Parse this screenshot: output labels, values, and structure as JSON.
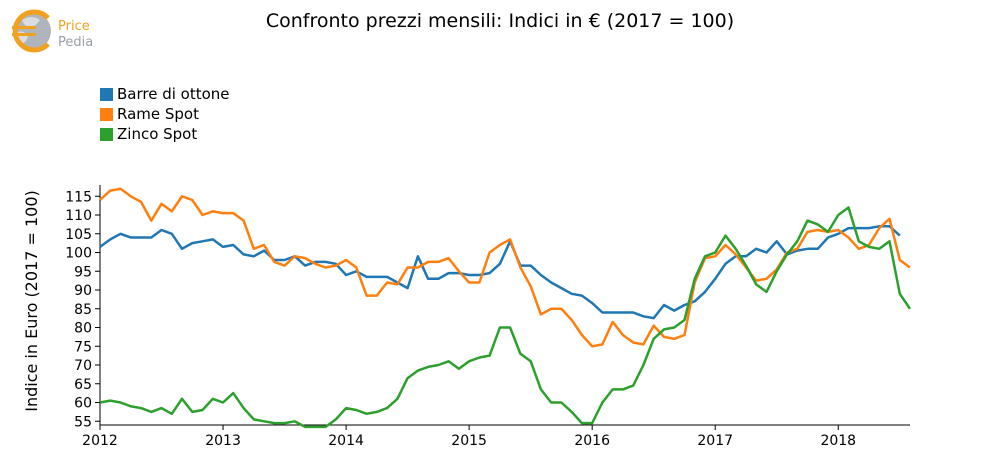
{
  "title": "Confronto prezzi mensili: Indici in € (2017 = 100)",
  "logo": {
    "line1": "Price",
    "line2": "Pedia"
  },
  "colors": {
    "brass": "#1f77b4",
    "copper": "#ff7f0e",
    "zinc": "#2ca02c",
    "logo": "#f2a11e"
  },
  "chart_data": {
    "type": "line",
    "title": "Confronto prezzi mensili: Indici in € (2017 = 100)",
    "xlabel": "",
    "ylabel": "Indice in Euro (2017 = 100)",
    "xlim": [
      2012.0,
      2018.583
    ],
    "ylim": [
      54,
      118
    ],
    "xticks": [
      2012,
      2013,
      2014,
      2015,
      2016,
      2017,
      2018
    ],
    "xtick_labels": [
      "2012",
      "2013",
      "2014",
      "2015",
      "2016",
      "2017",
      "2018"
    ],
    "yticks": [
      55,
      60,
      65,
      70,
      75,
      80,
      85,
      90,
      95,
      100,
      105,
      110,
      115
    ],
    "ytick_labels": [
      "55",
      "60",
      "65",
      "70",
      "75",
      "80",
      "85",
      "90",
      "95",
      "100",
      "105",
      "110",
      "115"
    ],
    "grid": false,
    "legend": "top-left",
    "x_start": 2012.0,
    "x_step_months": 1,
    "series": [
      {
        "name": "Barre di ottone",
        "color": "#1f77b4",
        "values": [
          101.5,
          103.5,
          105,
          104,
          104,
          104,
          106,
          105,
          101,
          102.5,
          103,
          103.5,
          101.5,
          102,
          99.5,
          99,
          100.5,
          98,
          98,
          99,
          96.5,
          97.5,
          97.5,
          97,
          94,
          95,
          93.5,
          93.5,
          93.5,
          92,
          90.5,
          99,
          93,
          93,
          94.5,
          94.5,
          94,
          94,
          94.5,
          97,
          103,
          96.5,
          96.5,
          94,
          92,
          90.5,
          89,
          88.5,
          86.5,
          84,
          84,
          84,
          84,
          83,
          82.5,
          86,
          84.5,
          86,
          87,
          89.5,
          93,
          97,
          99,
          99,
          101,
          100,
          103,
          99.5,
          100.5,
          101,
          101,
          104,
          105,
          106.5,
          106.5,
          106.5,
          107,
          107,
          104.5
        ]
      },
      {
        "name": "Rame Spot",
        "color": "#ff7f0e",
        "values": [
          114,
          116.5,
          117,
          115,
          113.5,
          108.5,
          113,
          111,
          115,
          114,
          110,
          111,
          110.5,
          110.5,
          108.5,
          101,
          102,
          97.5,
          96.5,
          99,
          98.5,
          97,
          96,
          96.5,
          98,
          96,
          88.5,
          88.5,
          92,
          91.5,
          96,
          96,
          97.5,
          97.5,
          98.5,
          95,
          92,
          92,
          100,
          102,
          103.5,
          96,
          91,
          83.5,
          85,
          85,
          82,
          78,
          75,
          75.5,
          81.5,
          78,
          76,
          75.5,
          80.5,
          77.5,
          77,
          78,
          92,
          98.5,
          99,
          102,
          99.5,
          96,
          92.5,
          93,
          95.5,
          100,
          101,
          105.5,
          106,
          105.5,
          106,
          104,
          101,
          102,
          106.5,
          109,
          98,
          96
        ]
      },
      {
        "name": "Zinco Spot",
        "color": "#2ca02c",
        "values": [
          60,
          60.5,
          60,
          59,
          58.5,
          57.5,
          58.5,
          57,
          61,
          57.5,
          58,
          61,
          60,
          62.5,
          58.5,
          55.5,
          55,
          54.5,
          54.5,
          55,
          53.5,
          53.5,
          53.5,
          55.5,
          58.5,
          58,
          57,
          57.5,
          58.5,
          61,
          66.5,
          68.5,
          69.5,
          70,
          71,
          69,
          71,
          72,
          72.5,
          80,
          80,
          73,
          71,
          63.5,
          60,
          60,
          57.5,
          54.5,
          54.5,
          60,
          63.5,
          63.5,
          64.5,
          70,
          77,
          79.5,
          80,
          82,
          93,
          99,
          100,
          104.5,
          101,
          96.5,
          91.5,
          89.5,
          95,
          99.5,
          103,
          108.5,
          107.5,
          105.5,
          110,
          112,
          103,
          101.5,
          101,
          103,
          89,
          85
        ]
      }
    ]
  }
}
